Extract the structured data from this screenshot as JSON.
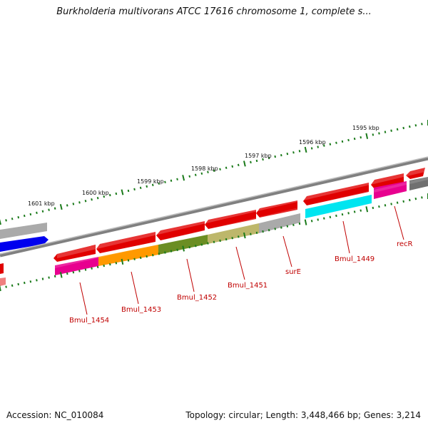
{
  "title": "Burkholderia multivorans ATCC 17616 chromosome 1, complete s...",
  "accession_text": "Accession: NC_010084",
  "stats_text": "Topology: circular; Length: 3,448,466 bp; Genes: 3,214",
  "ticks": [
    {
      "label": "1595 kbp"
    },
    {
      "label": "1596 kbp"
    },
    {
      "label": "1597 kbp"
    },
    {
      "label": "1598 kbp"
    },
    {
      "label": "1599 kbp"
    },
    {
      "label": "1600 kbp"
    },
    {
      "label": "1601 kbp"
    }
  ],
  "genes": [
    {
      "label": "recR"
    },
    {
      "label": "Bmul_1449"
    },
    {
      "label": "surE"
    },
    {
      "label": "Bmul_1451"
    },
    {
      "label": "Bmul_1452"
    },
    {
      "label": "Bmul_1453"
    },
    {
      "label": "Bmul_1454"
    }
  ],
  "colors": {
    "cds": "#e00000",
    "backbone": "#808080",
    "tick": "#1a7a1a",
    "label": "#c00000",
    "cyan": "#00e5f0",
    "magenta": "#e8008f",
    "orange": "#ff9900",
    "olive": "#6b8e23",
    "khaki": "#bdb76b",
    "grey": "#aaaaaa",
    "dark_grey": "#707070",
    "blue": "#0000ee"
  }
}
